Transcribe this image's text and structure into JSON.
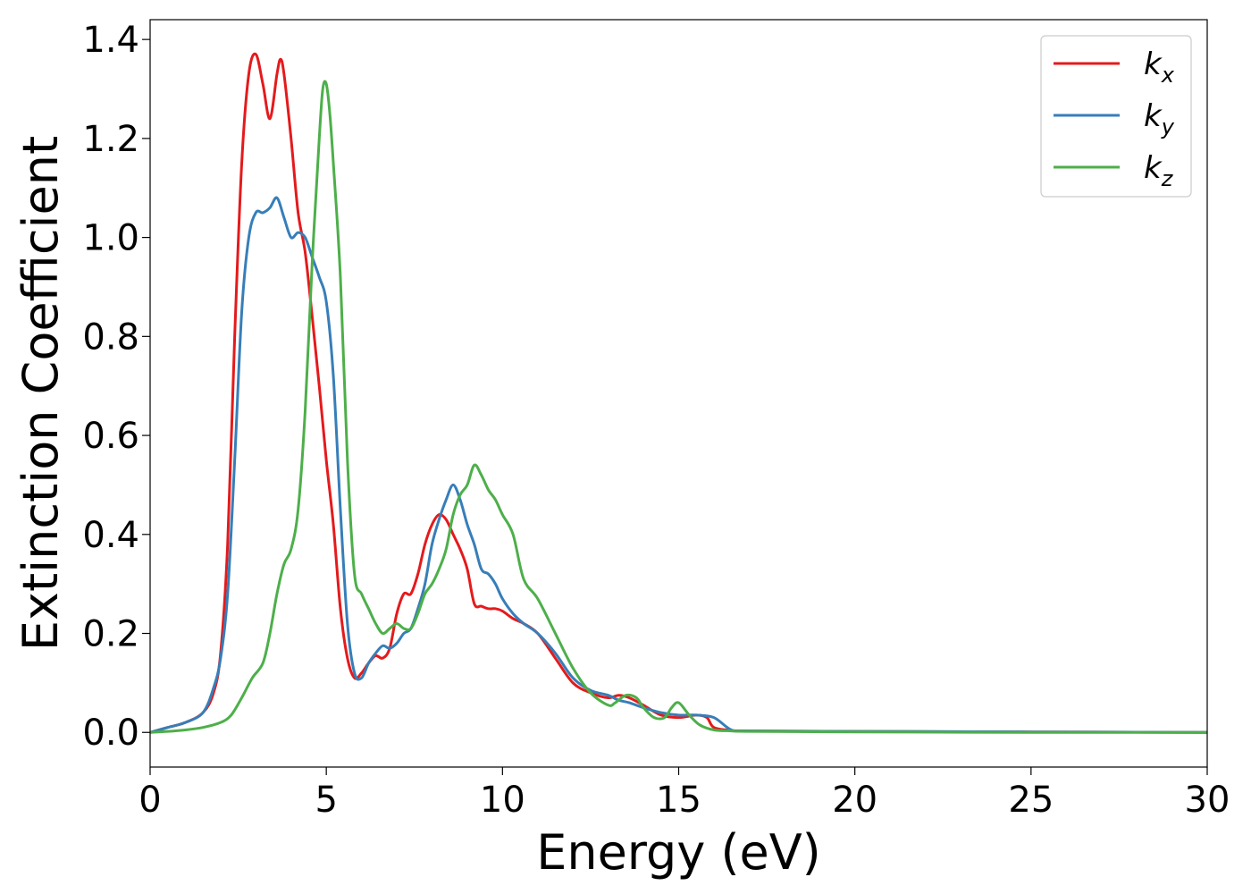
{
  "chart_data": {
    "type": "line",
    "xlabel": "Energy (eV)",
    "ylabel": "Extinction Coefficient",
    "xlim": [
      0,
      30
    ],
    "ylim": [
      -0.07,
      1.44
    ],
    "xticks": [
      0,
      5,
      10,
      15,
      20,
      25,
      30
    ],
    "xtick_labels": [
      "0",
      "5",
      "10",
      "15",
      "20",
      "25",
      "30"
    ],
    "yticks": [
      0.0,
      0.2,
      0.4,
      0.6,
      0.8,
      1.0,
      1.2,
      1.4
    ],
    "ytick_labels": [
      "0.0",
      "0.2",
      "0.4",
      "0.6",
      "0.8",
      "1.0",
      "1.2",
      "1.4"
    ],
    "grid": false,
    "legend_position": "top-right",
    "series": [
      {
        "name": "k_x",
        "legend_base": "k",
        "legend_sub": "x",
        "color": "#e41a1c",
        "x": [
          0,
          0.5,
          1.0,
          1.5,
          1.8,
          2.0,
          2.2,
          2.4,
          2.6,
          2.8,
          3.0,
          3.2,
          3.4,
          3.6,
          3.7,
          3.8,
          4.0,
          4.2,
          4.4,
          4.6,
          4.8,
          5.0,
          5.2,
          5.4,
          5.6,
          5.8,
          6.0,
          6.2,
          6.4,
          6.6,
          6.8,
          7.0,
          7.2,
          7.4,
          7.6,
          7.8,
          8.0,
          8.2,
          8.4,
          8.6,
          8.8,
          9.0,
          9.2,
          9.4,
          9.6,
          9.8,
          10.0,
          10.3,
          10.6,
          11.0,
          11.5,
          12.0,
          12.5,
          13.0,
          13.3,
          13.6,
          14.0,
          14.5,
          15.0,
          15.5,
          15.8,
          16.0,
          16.5,
          17,
          20,
          25,
          30
        ],
        "y": [
          0.0,
          0.01,
          0.02,
          0.04,
          0.08,
          0.16,
          0.38,
          0.8,
          1.15,
          1.33,
          1.37,
          1.31,
          1.24,
          1.33,
          1.36,
          1.33,
          1.2,
          1.05,
          0.97,
          0.84,
          0.7,
          0.55,
          0.42,
          0.25,
          0.15,
          0.11,
          0.12,
          0.14,
          0.155,
          0.15,
          0.17,
          0.24,
          0.28,
          0.28,
          0.32,
          0.38,
          0.42,
          0.44,
          0.43,
          0.4,
          0.37,
          0.33,
          0.26,
          0.255,
          0.25,
          0.25,
          0.245,
          0.23,
          0.22,
          0.2,
          0.15,
          0.1,
          0.08,
          0.07,
          0.075,
          0.07,
          0.055,
          0.035,
          0.03,
          0.035,
          0.03,
          0.01,
          0.004,
          0.003,
          0.002,
          0.001,
          0.0
        ]
      },
      {
        "name": "k_y",
        "legend_base": "k",
        "legend_sub": "y",
        "color": "#377eb8",
        "x": [
          0,
          0.5,
          1.0,
          1.5,
          1.8,
          2.0,
          2.2,
          2.4,
          2.6,
          2.8,
          3.0,
          3.2,
          3.4,
          3.6,
          3.8,
          4.0,
          4.2,
          4.4,
          4.6,
          4.8,
          5.0,
          5.2,
          5.4,
          5.6,
          5.8,
          6.0,
          6.2,
          6.4,
          6.6,
          6.8,
          7.0,
          7.2,
          7.4,
          7.6,
          7.8,
          8.0,
          8.2,
          8.4,
          8.6,
          8.8,
          9.0,
          9.2,
          9.4,
          9.6,
          9.8,
          10.0,
          10.3,
          10.6,
          11.0,
          11.5,
          12.0,
          12.5,
          13.0,
          13.3,
          13.6,
          14.0,
          14.5,
          15.0,
          15.5,
          16.0,
          16.5,
          17,
          20,
          25,
          30
        ],
        "y": [
          0.0,
          0.01,
          0.02,
          0.04,
          0.09,
          0.15,
          0.28,
          0.55,
          0.85,
          1.0,
          1.05,
          1.05,
          1.06,
          1.08,
          1.04,
          1.0,
          1.01,
          1.0,
          0.96,
          0.92,
          0.87,
          0.72,
          0.45,
          0.22,
          0.12,
          0.11,
          0.14,
          0.16,
          0.175,
          0.17,
          0.18,
          0.2,
          0.21,
          0.25,
          0.3,
          0.38,
          0.43,
          0.47,
          0.5,
          0.47,
          0.42,
          0.38,
          0.33,
          0.32,
          0.3,
          0.27,
          0.24,
          0.22,
          0.2,
          0.16,
          0.11,
          0.085,
          0.075,
          0.065,
          0.06,
          0.05,
          0.04,
          0.035,
          0.035,
          0.03,
          0.005,
          0.003,
          0.002,
          0.001,
          0.0
        ]
      },
      {
        "name": "k_z",
        "legend_base": "k",
        "legend_sub": "z",
        "color": "#4daf4a",
        "x": [
          0,
          0.5,
          1.0,
          1.5,
          2.0,
          2.3,
          2.6,
          2.9,
          3.2,
          3.4,
          3.6,
          3.8,
          4.0,
          4.2,
          4.4,
          4.6,
          4.8,
          4.9,
          5.0,
          5.1,
          5.2,
          5.4,
          5.6,
          5.8,
          6.0,
          6.2,
          6.4,
          6.6,
          6.8,
          7.0,
          7.2,
          7.4,
          7.6,
          7.8,
          8.0,
          8.2,
          8.4,
          8.6,
          8.8,
          9.0,
          9.2,
          9.4,
          9.6,
          9.8,
          10.0,
          10.3,
          10.6,
          11.0,
          11.5,
          12.0,
          12.5,
          13.0,
          13.2,
          13.5,
          13.8,
          14.0,
          14.3,
          14.6,
          14.8,
          15.0,
          15.3,
          15.6,
          16.0,
          16.5,
          17,
          20,
          25,
          30
        ],
        "y": [
          0.0,
          0.002,
          0.005,
          0.01,
          0.02,
          0.035,
          0.07,
          0.11,
          0.14,
          0.2,
          0.28,
          0.34,
          0.37,
          0.45,
          0.65,
          0.95,
          1.2,
          1.3,
          1.31,
          1.25,
          1.15,
          0.92,
          0.55,
          0.32,
          0.28,
          0.25,
          0.22,
          0.2,
          0.21,
          0.22,
          0.21,
          0.21,
          0.24,
          0.28,
          0.3,
          0.33,
          0.37,
          0.44,
          0.48,
          0.5,
          0.54,
          0.52,
          0.49,
          0.47,
          0.44,
          0.4,
          0.31,
          0.27,
          0.2,
          0.13,
          0.08,
          0.055,
          0.06,
          0.075,
          0.07,
          0.05,
          0.03,
          0.03,
          0.05,
          0.06,
          0.035,
          0.015,
          0.005,
          0.003,
          0.002,
          0.001,
          0.0,
          0.0
        ]
      }
    ]
  }
}
